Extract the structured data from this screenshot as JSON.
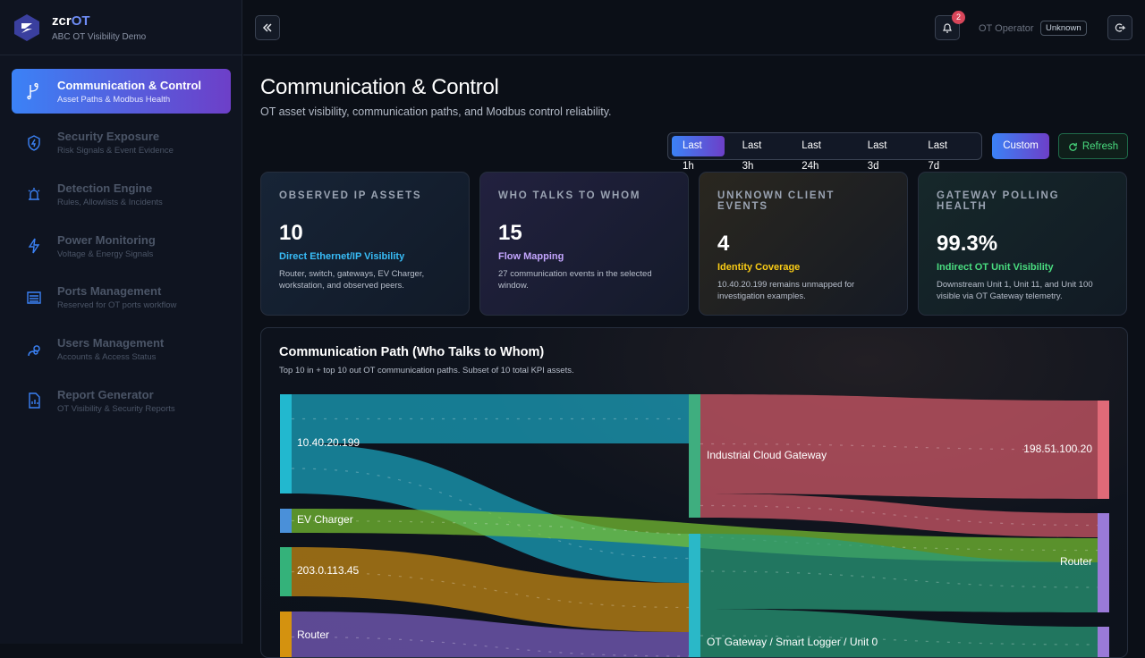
{
  "brand": {
    "name_prefix": "zcr",
    "name_suffix": "OT",
    "subtitle": "ABC OT Visibility Demo"
  },
  "nav": [
    {
      "title": "Communication & Control",
      "subtitle": "Asset Paths & Modbus Health"
    },
    {
      "title": "Security Exposure",
      "subtitle": "Risk Signals & Event Evidence"
    },
    {
      "title": "Detection Engine",
      "subtitle": "Rules, Allowlists & Incidents"
    },
    {
      "title": "Power Monitoring",
      "subtitle": "Voltage & Energy Signals"
    },
    {
      "title": "Ports Management",
      "subtitle": "Reserved for OT ports workflow"
    },
    {
      "title": "Users Management",
      "subtitle": "Accounts & Access Status"
    },
    {
      "title": "Report Generator",
      "subtitle": "OT Visibility & Security Reports"
    }
  ],
  "header": {
    "notifications": 2,
    "user": "OT Operator",
    "status": "Unknown"
  },
  "page": {
    "title": "Communication & Control",
    "subtitle": "OT asset visibility, communication paths, and Modbus control reliability."
  },
  "time_ranges": [
    "Last 1h",
    "Last 3h",
    "Last 24h",
    "Last 3d",
    "Last 7d"
  ],
  "buttons": {
    "custom": "Custom",
    "refresh": "Refresh"
  },
  "kpis": [
    {
      "label": "OBSERVED IP ASSETS",
      "value": "10",
      "subtitle": "Direct Ethernet/IP Visibility",
      "description": "Router, switch, gateways, EV Charger, workstation, and observed peers."
    },
    {
      "label": "WHO TALKS TO WHOM",
      "value": "15",
      "subtitle": "Flow Mapping",
      "description": "27 communication events in the selected window."
    },
    {
      "label": "UNKNOWN CLIENT EVENTS",
      "value": "4",
      "subtitle": "Identity Coverage",
      "description": "10.40.20.199 remains unmapped for investigation examples."
    },
    {
      "label": "GATEWAY POLLING HEALTH",
      "value": "99.3%",
      "subtitle": "Indirect OT Unit Visibility",
      "description": "Downstream Unit 1, Unit 11, and Unit 100 visible via OT Gateway telemetry."
    }
  ],
  "sankey": {
    "title": "Communication Path (Who Talks to Whom)",
    "subtitle": "Top 10 in + top 10 out OT communication paths. Subset of 10 total KPI assets.",
    "sources": [
      "10.40.20.199",
      "EV Charger",
      "203.0.113.45",
      "Router"
    ],
    "hubs": [
      "Industrial Cloud Gateway",
      "OT Gateway / Smart Logger / Unit 0"
    ],
    "targets": [
      "198.51.100.20",
      "Router"
    ]
  }
}
